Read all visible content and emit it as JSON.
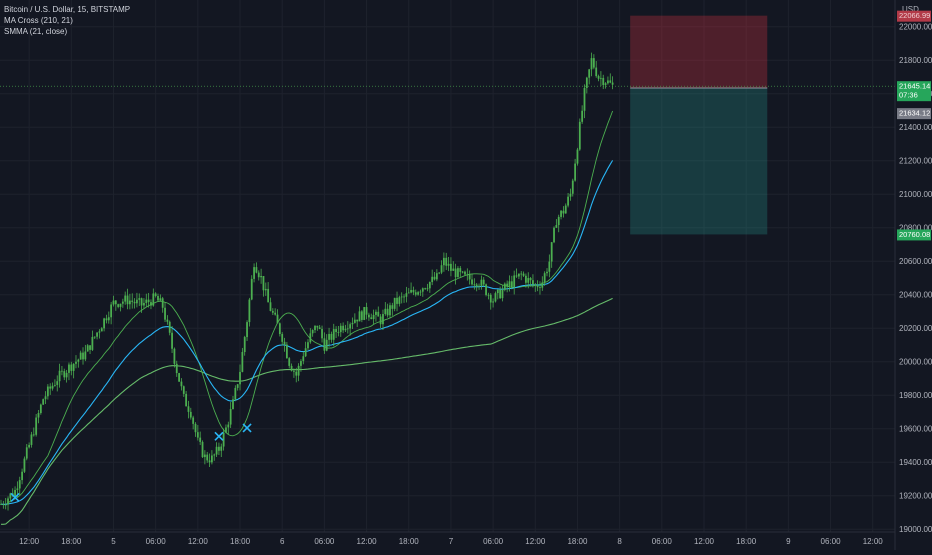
{
  "legend": {
    "symbol": "Bitcoin / U.S. Dollar, 15, BITSTAMP",
    "indicator_1": "MA Cross (210, 21)",
    "indicator_2": "SMMA (21, close)"
  },
  "chart_data": {
    "type": "candlestick",
    "currency": "USD",
    "ylim": [
      18900,
      22300
    ],
    "y_ticks": [
      19000,
      19200,
      19400,
      19600,
      19800,
      20000,
      20200,
      20400,
      20600,
      20800,
      21000,
      21200,
      21400,
      21600,
      21800,
      22000
    ],
    "y_tick_labels": [
      "19000.00",
      "19200.00",
      "19400.00",
      "19600.00",
      "19800.00",
      "20000.00",
      "20200.00",
      "20400.00",
      "20600.00",
      "20800.00",
      "21000.00",
      "21200.00",
      "21400.00",
      "21600.00",
      "21800.00",
      "22000.00"
    ],
    "x_tick_labels": [
      "12:00",
      "18:00",
      "5",
      "06:00",
      "12:00",
      "18:00",
      "6",
      "06:00",
      "12:00",
      "18:00",
      "7",
      "06:00",
      "12:00",
      "18:00",
      "8",
      "06:00",
      "12:00",
      "18:00",
      "9",
      "06:00",
      "12:00"
    ],
    "x_tick_index": [
      4,
      10,
      16,
      22,
      28,
      34,
      40,
      46,
      52,
      58,
      64,
      70,
      76,
      82,
      88,
      94,
      100,
      106,
      112,
      118,
      124
    ],
    "price_path": [
      [
        0,
        19150
      ],
      [
        2,
        19230
      ],
      [
        4,
        19500
      ],
      [
        6,
        19780
      ],
      [
        8,
        19900
      ],
      [
        10,
        19980
      ],
      [
        12,
        20050
      ],
      [
        14,
        20200
      ],
      [
        16,
        20350
      ],
      [
        18,
        20370
      ],
      [
        20,
        20340
      ],
      [
        22,
        20380
      ],
      [
        23,
        20330
      ],
      [
        24,
        20150
      ],
      [
        25,
        19950
      ],
      [
        26,
        19780
      ],
      [
        27,
        19700
      ],
      [
        28,
        19520
      ],
      [
        29,
        19430
      ],
      [
        30,
        19420
      ],
      [
        31,
        19480
      ],
      [
        32,
        19600
      ],
      [
        33,
        19750
      ],
      [
        34,
        19950
      ],
      [
        35,
        20250
      ],
      [
        36,
        20600
      ],
      [
        37,
        20500
      ],
      [
        38,
        20350
      ],
      [
        39,
        20250
      ],
      [
        40,
        20150
      ],
      [
        41,
        20000
      ],
      [
        42,
        19920
      ],
      [
        43,
        20050
      ],
      [
        44,
        20150
      ],
      [
        45,
        20220
      ],
      [
        46,
        20100
      ],
      [
        48,
        20200
      ],
      [
        50,
        20250
      ],
      [
        52,
        20300
      ],
      [
        54,
        20250
      ],
      [
        56,
        20350
      ],
      [
        58,
        20400
      ],
      [
        60,
        20450
      ],
      [
        62,
        20500
      ],
      [
        63,
        20600
      ],
      [
        64,
        20550
      ],
      [
        66,
        20500
      ],
      [
        68,
        20480
      ],
      [
        70,
        20370
      ],
      [
        72,
        20450
      ],
      [
        74,
        20520
      ],
      [
        76,
        20450
      ],
      [
        77,
        20480
      ],
      [
        78,
        20600
      ],
      [
        79,
        20850
      ],
      [
        80,
        20900
      ],
      [
        81,
        21000
      ],
      [
        82,
        21300
      ],
      [
        83,
        21600
      ],
      [
        84,
        21800
      ],
      [
        85,
        21700
      ],
      [
        86,
        21680
      ],
      [
        87,
        21645
      ]
    ],
    "last_price": "21645.14",
    "countdown": "07:36",
    "avg_price": "21634.12",
    "position": {
      "start_index": 89.5,
      "end_index": 109,
      "entry": 21634,
      "stop_loss": 22066,
      "stop_label": "22066.99",
      "take_profit": 20760,
      "target_label": "20760.08"
    },
    "cross_markers": [
      [
        2,
        19190
      ],
      [
        31,
        19555
      ],
      [
        35,
        19605
      ]
    ],
    "colors": {
      "bull": "#26a69a",
      "candle": "#4caf50",
      "ma_fast": "#4caf50",
      "ma_slow": "#66bb6a",
      "smma": "#29b6f6",
      "cross": "#29b6f6",
      "last_bg": "#26a65b",
      "avg_bg": "#787b86",
      "stop_zone": "rgba(201,49,63,0.33)",
      "target_zone": "rgba(38,166,154,0.25)"
    }
  }
}
